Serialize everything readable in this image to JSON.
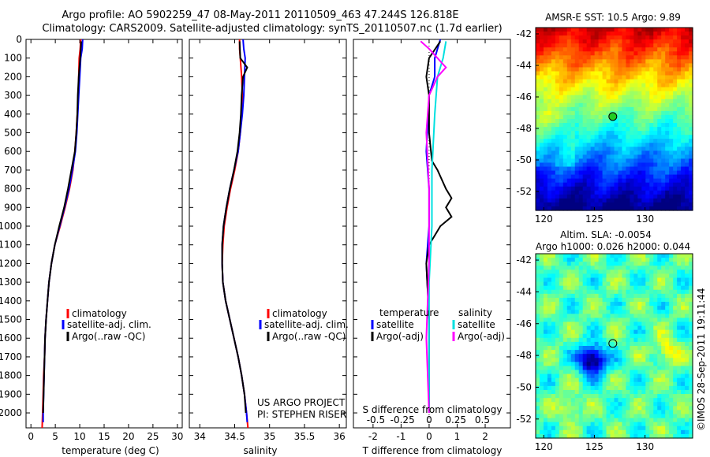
{
  "header": {
    "line1": "Argo profile: AO 5902259_47 08-May-2011 20110509_463 47.244S 126.818E",
    "line2": "Climatology: CARS2009. Satellite-adjusted climatology: synTS_20110507.nc (1.7d earlier)"
  },
  "side_text": "©IMOS 28-Sep-2011 19:11:44",
  "chart_data": [
    {
      "type": "line",
      "id": "temperature",
      "xlabel": "temperature (deg C)",
      "ylabel": "",
      "xlim": [
        -1,
        31
      ],
      "ylim": [
        0,
        2080
      ],
      "y_reversed": true,
      "xticks": [
        0,
        5,
        10,
        15,
        20,
        25,
        30
      ],
      "yticks": [
        0,
        100,
        200,
        300,
        400,
        500,
        600,
        700,
        800,
        900,
        1000,
        1100,
        1200,
        1300,
        1400,
        1500,
        1600,
        1700,
        1800,
        1900,
        2000
      ],
      "legend": {
        "placement": "lower-middle",
        "items": [
          "climatology",
          "satellite-adj. clim.",
          "Argo(..raw -QC)"
        ]
      },
      "series": [
        {
          "name": "climatology",
          "color": "#ff0000",
          "points": [
            [
              10.2,
              0
            ],
            [
              10.1,
              50
            ],
            [
              9.9,
              100
            ],
            [
              9.8,
              200
            ],
            [
              9.7,
              300
            ],
            [
              9.5,
              400
            ],
            [
              9.3,
              500
            ],
            [
              9.0,
              600
            ],
            [
              8.6,
              700
            ],
            [
              7.9,
              800
            ],
            [
              7.0,
              900
            ],
            [
              6.0,
              1000
            ],
            [
              4.9,
              1100
            ],
            [
              4.2,
              1200
            ],
            [
              3.7,
              1300
            ],
            [
              3.4,
              1400
            ],
            [
              3.1,
              1500
            ],
            [
              2.9,
              1600
            ],
            [
              2.8,
              1700
            ],
            [
              2.6,
              1800
            ],
            [
              2.5,
              1900
            ],
            [
              2.4,
              2000
            ],
            [
              2.3,
              2080
            ]
          ]
        },
        {
          "name": "satellite-adj. clim.",
          "color": "#0000ff",
          "points": [
            [
              10.6,
              0
            ],
            [
              10.5,
              50
            ],
            [
              10.2,
              100
            ],
            [
              10.0,
              200
            ],
            [
              9.8,
              300
            ],
            [
              9.6,
              400
            ],
            [
              9.4,
              500
            ],
            [
              9.1,
              600
            ],
            [
              8.5,
              700
            ],
            [
              7.8,
              800
            ],
            [
              6.9,
              900
            ],
            [
              5.9,
              1000
            ],
            [
              4.9,
              1100
            ],
            [
              4.2,
              1200
            ],
            [
              3.7,
              1300
            ],
            [
              3.4,
              1400
            ],
            [
              3.1,
              1500
            ],
            [
              2.9,
              1600
            ],
            [
              2.8,
              1700
            ],
            [
              2.7,
              1800
            ],
            [
              2.6,
              1900
            ],
            [
              2.5,
              2000
            ],
            [
              2.5,
              2050
            ]
          ]
        },
        {
          "name": "Argo(..raw -QC)",
          "color": "#000000",
          "points": [
            [
              10.3,
              10
            ],
            [
              10.1,
              100
            ],
            [
              9.8,
              200
            ],
            [
              9.6,
              300
            ],
            [
              9.5,
              400
            ],
            [
              9.3,
              500
            ],
            [
              9.0,
              600
            ],
            [
              8.3,
              700
            ],
            [
              7.6,
              800
            ],
            [
              6.8,
              900
            ],
            [
              5.8,
              1000
            ],
            [
              4.9,
              1100
            ],
            [
              4.2,
              1200
            ],
            [
              3.7,
              1300
            ],
            [
              3.4,
              1400
            ],
            [
              3.1,
              1500
            ],
            [
              2.9,
              1600
            ],
            [
              2.8,
              1700
            ],
            [
              2.7,
              1800
            ],
            [
              2.6,
              1900
            ],
            [
              2.5,
              2000
            ]
          ]
        }
      ]
    },
    {
      "type": "line",
      "id": "salinity",
      "xlabel": "salinity",
      "ylabel": "",
      "xlim": [
        33.85,
        36.1
      ],
      "ylim": [
        0,
        2080
      ],
      "y_reversed": true,
      "xticks": [
        34,
        34.5,
        35,
        35.5,
        36
      ],
      "legend": {
        "placement": "lower-middle",
        "items": [
          "climatology",
          "satellite-adj. clim.",
          "Argo(..raw -QC)"
        ]
      },
      "annotations": [
        "US ARGO PROJECT",
        "PI: STEPHEN RISER"
      ],
      "series": [
        {
          "name": "climatology",
          "color": "#ff0000",
          "points": [
            [
              34.57,
              0
            ],
            [
              34.57,
              50
            ],
            [
              34.58,
              100
            ],
            [
              34.6,
              200
            ],
            [
              34.61,
              300
            ],
            [
              34.6,
              400
            ],
            [
              34.58,
              500
            ],
            [
              34.55,
              600
            ],
            [
              34.5,
              700
            ],
            [
              34.44,
              800
            ],
            [
              34.39,
              900
            ],
            [
              34.35,
              1000
            ],
            [
              34.33,
              1100
            ],
            [
              34.32,
              1200
            ],
            [
              34.33,
              1300
            ],
            [
              34.37,
              1400
            ],
            [
              34.43,
              1500
            ],
            [
              34.49,
              1600
            ],
            [
              34.55,
              1700
            ],
            [
              34.6,
              1800
            ],
            [
              34.64,
              1900
            ],
            [
              34.67,
              2000
            ],
            [
              34.69,
              2080
            ]
          ]
        },
        {
          "name": "satellite-adj. clim.",
          "color": "#0000ff",
          "points": [
            [
              34.62,
              0
            ],
            [
              34.63,
              50
            ],
            [
              34.65,
              100
            ],
            [
              34.64,
              200
            ],
            [
              34.63,
              300
            ],
            [
              34.61,
              400
            ],
            [
              34.58,
              500
            ],
            [
              34.55,
              600
            ],
            [
              34.49,
              700
            ],
            [
              34.43,
              800
            ],
            [
              34.38,
              900
            ],
            [
              34.34,
              1000
            ],
            [
              34.32,
              1100
            ],
            [
              34.32,
              1200
            ],
            [
              34.33,
              1300
            ],
            [
              34.37,
              1400
            ],
            [
              34.43,
              1500
            ],
            [
              34.49,
              1600
            ],
            [
              34.55,
              1700
            ],
            [
              34.6,
              1800
            ],
            [
              34.64,
              1900
            ],
            [
              34.67,
              2000
            ],
            [
              34.68,
              2050
            ]
          ]
        },
        {
          "name": "Argo(..raw -QC)",
          "color": "#000000",
          "points": [
            [
              34.57,
              10
            ],
            [
              34.58,
              100
            ],
            [
              34.68,
              150
            ],
            [
              34.62,
              200
            ],
            [
              34.6,
              300
            ],
            [
              34.59,
              400
            ],
            [
              34.57,
              500
            ],
            [
              34.54,
              600
            ],
            [
              34.49,
              700
            ],
            [
              34.43,
              800
            ],
            [
              34.38,
              900
            ],
            [
              34.34,
              1000
            ],
            [
              34.32,
              1100
            ],
            [
              34.32,
              1200
            ],
            [
              34.33,
              1300
            ],
            [
              34.37,
              1400
            ],
            [
              34.43,
              1500
            ],
            [
              34.49,
              1600
            ],
            [
              34.55,
              1700
            ],
            [
              34.6,
              1800
            ],
            [
              34.64,
              1900
            ],
            [
              34.66,
              2000
            ]
          ]
        }
      ]
    },
    {
      "type": "line",
      "id": "differences",
      "xlabel": "T difference from climatology",
      "xlabel_top": "S difference from climatology",
      "ylabel": "",
      "xlim": [
        -2.7,
        2.9
      ],
      "ylim": [
        0,
        2080
      ],
      "y_reversed": true,
      "xticks": [
        -2,
        -1,
        0,
        1,
        2
      ],
      "top_ticks": [
        "-0.5",
        "-0.25",
        "0",
        "0.25",
        "0.5"
      ],
      "legend": {
        "placement": "lower",
        "items": [
          "temperature",
          "satellite",
          "Argo(-adj)",
          "salinity",
          "satellite",
          "Argo(-adj)"
        ]
      },
      "series": [
        {
          "name": "temperature satellite",
          "color": "#0000ff",
          "points": [
            [
              0.4,
              0
            ],
            [
              0.2,
              100
            ],
            [
              0.2,
              200
            ],
            [
              0.0,
              300
            ],
            [
              -0.1,
              600
            ],
            [
              0.0,
              800
            ],
            [
              0.0,
              1000
            ],
            [
              -0.1,
              1200
            ],
            [
              0.0,
              1500
            ],
            [
              0.0,
              2000
            ]
          ]
        },
        {
          "name": "temperature Argo(-adj)",
          "color": "#000000",
          "points": [
            [
              0.4,
              10
            ],
            [
              0.0,
              100
            ],
            [
              -0.1,
              200
            ],
            [
              0.0,
              300
            ],
            [
              0.0,
              500
            ],
            [
              0.1,
              650
            ],
            [
              0.3,
              700
            ],
            [
              0.6,
              800
            ],
            [
              0.8,
              850
            ],
            [
              0.6,
              900
            ],
            [
              0.8,
              950
            ],
            [
              0.4,
              1000
            ],
            [
              0.2,
              1050
            ],
            [
              0.0,
              1100
            ],
            [
              -0.1,
              1200
            ],
            [
              0.0,
              1500
            ],
            [
              0.0,
              2000
            ]
          ]
        },
        {
          "name": "salinity satellite",
          "color": "#00e0e0",
          "points": [
            [
              0.6,
              10
            ],
            [
              0.5,
              100
            ],
            [
              0.3,
              200
            ],
            [
              0.2,
              400
            ],
            [
              0.1,
              700
            ],
            [
              0.1,
              1000
            ],
            [
              0.0,
              1300
            ],
            [
              0.0,
              2000
            ]
          ]
        },
        {
          "name": "salinity Argo(-adj)",
          "color": "#ff00ff",
          "points": [
            [
              -0.3,
              10
            ],
            [
              0.0,
              50
            ],
            [
              0.6,
              150
            ],
            [
              0.3,
              200
            ],
            [
              0.0,
              300
            ],
            [
              -0.1,
              500
            ],
            [
              0.0,
              800
            ],
            [
              0.0,
              1200
            ],
            [
              -0.1,
              1600
            ],
            [
              0.0,
              2000
            ]
          ]
        }
      ]
    },
    {
      "type": "heatmap",
      "id": "sst-map",
      "title": "AMSR-E SST: 10.5 Argo: 9.89",
      "xlim": [
        119.2,
        134.7
      ],
      "ylim": [
        -53.2,
        -41.6
      ],
      "xticks": [
        120,
        125,
        130
      ],
      "yticks": [
        -42,
        -44,
        -46,
        -48,
        -50,
        -52
      ],
      "marker": {
        "lon": 126.818,
        "lat": -47.244,
        "color": "#22cc22"
      }
    },
    {
      "type": "heatmap",
      "id": "sla-map",
      "title": "Altim. SLA: -0.0054",
      "subtitle": "Argo h1000: 0.026 h2000: 0.044",
      "xlim": [
        119.2,
        134.7
      ],
      "ylim": [
        -53.2,
        -41.6
      ],
      "xticks": [
        120,
        125,
        130
      ],
      "yticks": [
        -42,
        -44,
        -46,
        -48,
        -50,
        -52
      ],
      "marker": {
        "lon": 126.818,
        "lat": -47.244,
        "color": "#22cc22"
      }
    }
  ]
}
